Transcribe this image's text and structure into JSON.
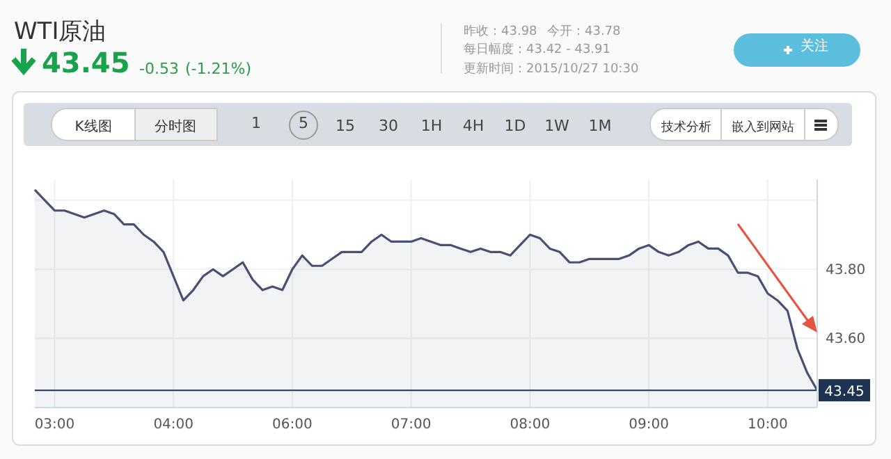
{
  "chart_data": {
    "type": "area",
    "title": "WTI原油",
    "subtitle": "43.45",
    "annotations": [
      "-0.53",
      "(-1.21%)",
      "昨收：43.98",
      "今开：43.78",
      "每日幅度：43.42 - 43.91",
      "更新时间：2015/10/27 10:30",
      "关注",
      "K线图",
      "分时图",
      "1",
      "5",
      "15",
      "30",
      "1H",
      "4H",
      "1D",
      "1W",
      "1M",
      "技术分析",
      "嵌入到网站"
    ],
    "categories": [
      null,
      null,
      "03:00",
      null,
      null,
      null,
      null,
      null,
      null,
      null,
      null,
      null,
      null,
      null,
      "04:00",
      null,
      null,
      null,
      null,
      null,
      null,
      null,
      null,
      null,
      null,
      null,
      "06:00",
      null,
      null,
      null,
      null,
      null,
      null,
      null,
      null,
      null,
      null,
      null,
      "07:00",
      null,
      null,
      null,
      null,
      null,
      null,
      null,
      null,
      null,
      null,
      null,
      "08:00",
      null,
      null,
      null,
      null,
      null,
      null,
      null,
      null,
      null,
      null,
      null,
      "09:00",
      null,
      null,
      null,
      null,
      null,
      null,
      null,
      null,
      null,
      null,
      null,
      "10:00",
      null,
      null,
      null,
      null,
      null
    ],
    "series": [
      {
        "color": "#4a5073",
        "values": [
          44.03,
          44.0,
          43.97,
          43.97,
          43.96,
          43.95,
          43.96,
          43.97,
          43.96,
          43.93,
          43.93,
          43.9,
          43.88,
          43.85,
          43.78,
          43.71,
          43.74,
          43.78,
          43.8,
          43.78,
          43.8,
          43.82,
          43.77,
          43.74,
          43.75,
          43.74,
          43.8,
          43.84,
          43.81,
          43.81,
          43.83,
          43.85,
          43.85,
          43.85,
          43.88,
          43.9,
          43.88,
          43.88,
          43.88,
          43.89,
          43.88,
          43.87,
          43.87,
          43.86,
          43.85,
          43.86,
          43.85,
          43.85,
          43.84,
          43.87,
          43.9,
          43.89,
          43.86,
          43.85,
          43.82,
          43.82,
          43.83,
          43.83,
          43.83,
          43.83,
          43.84,
          43.86,
          43.87,
          43.85,
          43.84,
          43.85,
          43.87,
          43.88,
          43.86,
          43.86,
          43.84,
          43.79,
          43.79,
          43.78,
          43.73,
          43.71,
          43.68,
          43.57,
          43.5,
          43.45
        ]
      }
    ],
    "ylim": [
      43.4,
      44.06
    ],
    "yticks": [
      {
        "value": 44,
        "label": null
      },
      {
        "value": 43.8,
        "label": "43.80"
      },
      {
        "value": 43.6,
        "label": "43.60"
      }
    ],
    "ref_lines": [
      {
        "axis": "y",
        "value": 43.45,
        "label": "43.45",
        "color": "#1f3350"
      }
    ],
    "grid": true,
    "marker": "none",
    "line_style": "solid"
  }
}
